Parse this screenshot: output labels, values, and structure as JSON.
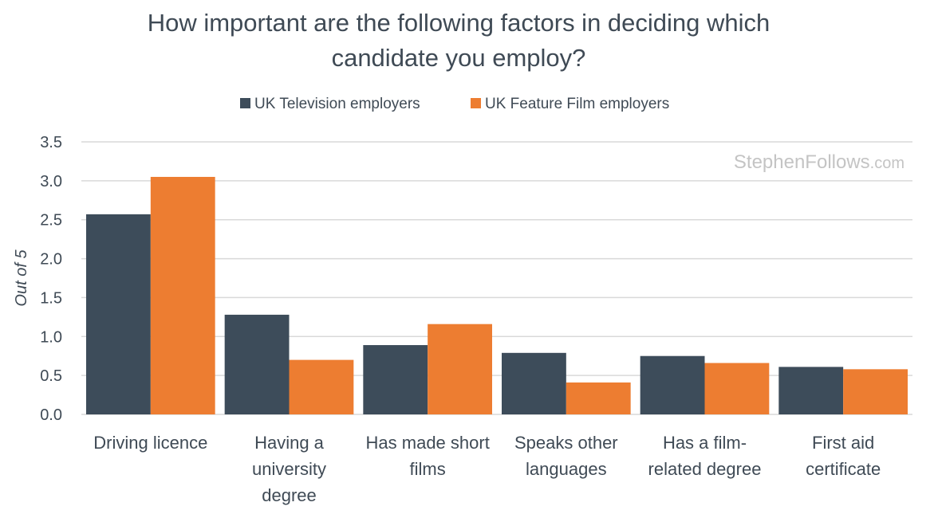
{
  "chart_data": {
    "type": "bar",
    "title_lines": [
      "How important are the following factors in deciding which",
      "candidate you employ?"
    ],
    "ylabel": "Out of 5",
    "ylim": [
      0,
      3.5
    ],
    "yticks": [
      "0.0",
      "0.5",
      "1.0",
      "1.5",
      "2.0",
      "2.5",
      "3.0",
      "3.5"
    ],
    "grid": true,
    "legend_position": "top",
    "categories": [
      [
        "Driving licence"
      ],
      [
        "Having a",
        "university",
        "degree"
      ],
      [
        "Has made short",
        "films"
      ],
      [
        "Speaks other",
        "languages"
      ],
      [
        "Has a film-",
        "related degree"
      ],
      [
        "First aid",
        "certificate"
      ]
    ],
    "series": [
      {
        "name": "UK Television employers",
        "color": "#3d4c5a",
        "values": [
          2.57,
          1.28,
          0.89,
          0.79,
          0.75,
          0.61
        ]
      },
      {
        "name": "UK Feature Film employers",
        "color": "#ed7d31",
        "values": [
          3.05,
          0.7,
          1.16,
          0.41,
          0.66,
          0.58
        ]
      }
    ]
  },
  "watermark": {
    "main": "StephenFollows",
    "suffix": ".com"
  }
}
